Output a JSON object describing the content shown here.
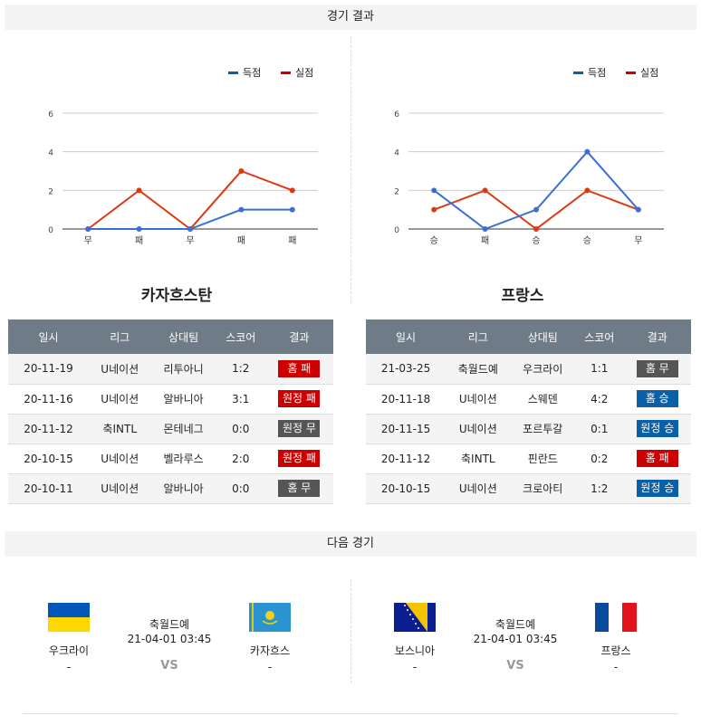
{
  "results_header": "경기 결과",
  "next_header": "다음 경기",
  "colors": {
    "scored": "#3a6fd8",
    "conceded": "#dc3912",
    "legend_scored": "#0b5fa5",
    "legend_conceded": "#cc0000",
    "win": "#0b5fa5",
    "loss": "#cc0000",
    "draw": "#555555"
  },
  "chart_data": [
    {
      "type": "line",
      "legend": [
        "득점",
        "실점"
      ],
      "legend_position": "top-right",
      "categories": [
        "무",
        "패",
        "무",
        "패",
        "패"
      ],
      "yticks": [
        "0",
        "2",
        "4",
        "6"
      ],
      "ylim": [
        0,
        6
      ],
      "grid": true,
      "series": [
        {
          "name": "득점",
          "values": [
            0,
            0,
            0,
            1,
            1
          ]
        },
        {
          "name": "실점",
          "values": [
            0,
            2,
            0,
            3,
            2
          ]
        }
      ]
    },
    {
      "type": "line",
      "legend": [
        "득점",
        "실점"
      ],
      "legend_position": "top-right",
      "categories": [
        "승",
        "패",
        "승",
        "승",
        "무"
      ],
      "yticks": [
        "0",
        "2",
        "4",
        "6"
      ],
      "ylim": [
        0,
        6
      ],
      "grid": true,
      "series": [
        {
          "name": "득점",
          "values": [
            2,
            0,
            1,
            4,
            1
          ]
        },
        {
          "name": "실점",
          "values": [
            1,
            2,
            0,
            2,
            1
          ]
        }
      ]
    }
  ],
  "teams": [
    {
      "name": "카자흐스탄",
      "columns": [
        "일시",
        "리그",
        "상대팀",
        "스코어",
        "결과"
      ],
      "rows": [
        [
          "20-11-19",
          "U네이션",
          "리투아니",
          "1:2",
          "홈 패",
          "loss"
        ],
        [
          "20-11-16",
          "U네이션",
          "알바니아",
          "3:1",
          "원정 패",
          "loss"
        ],
        [
          "20-11-12",
          "축INTL",
          "몬테네그",
          "0:0",
          "원정 무",
          "draw"
        ],
        [
          "20-10-15",
          "U네이션",
          "벨라루스",
          "2:0",
          "원정 패",
          "loss"
        ],
        [
          "20-10-11",
          "U네이션",
          "알바니아",
          "0:0",
          "홈 무",
          "draw"
        ]
      ]
    },
    {
      "name": "프랑스",
      "columns": [
        "일시",
        "리그",
        "상대팀",
        "스코어",
        "결과"
      ],
      "rows": [
        [
          "21-03-25",
          "축월드예",
          "우크라이",
          "1:1",
          "홈 무",
          "draw"
        ],
        [
          "20-11-18",
          "U네이션",
          "스웨덴",
          "4:2",
          "홈 승",
          "win"
        ],
        [
          "20-11-15",
          "U네이션",
          "포르투갈",
          "0:1",
          "원정 승",
          "win"
        ],
        [
          "20-11-12",
          "축INTL",
          "핀란드",
          "0:2",
          "홈 패",
          "loss"
        ],
        [
          "20-10-15",
          "U네이션",
          "크로아티",
          "1:2",
          "원정 승",
          "win"
        ]
      ]
    }
  ],
  "next_matches": [
    {
      "home": "우크라이",
      "home_flag": "ukraine-flag",
      "home_score": "-",
      "league": "축월드예",
      "datetime": "21-04-01 03:45",
      "vs": "VS",
      "away": "카자흐스",
      "away_flag": "kazakhstan-flag",
      "away_score": "-"
    },
    {
      "home": "보스니아",
      "home_flag": "bosnia-flag",
      "home_score": "-",
      "league": "축월드예",
      "datetime": "21-04-01 03:45",
      "vs": "VS",
      "away": "프랑스",
      "away_flag": "france-flag",
      "away_score": "-"
    }
  ]
}
